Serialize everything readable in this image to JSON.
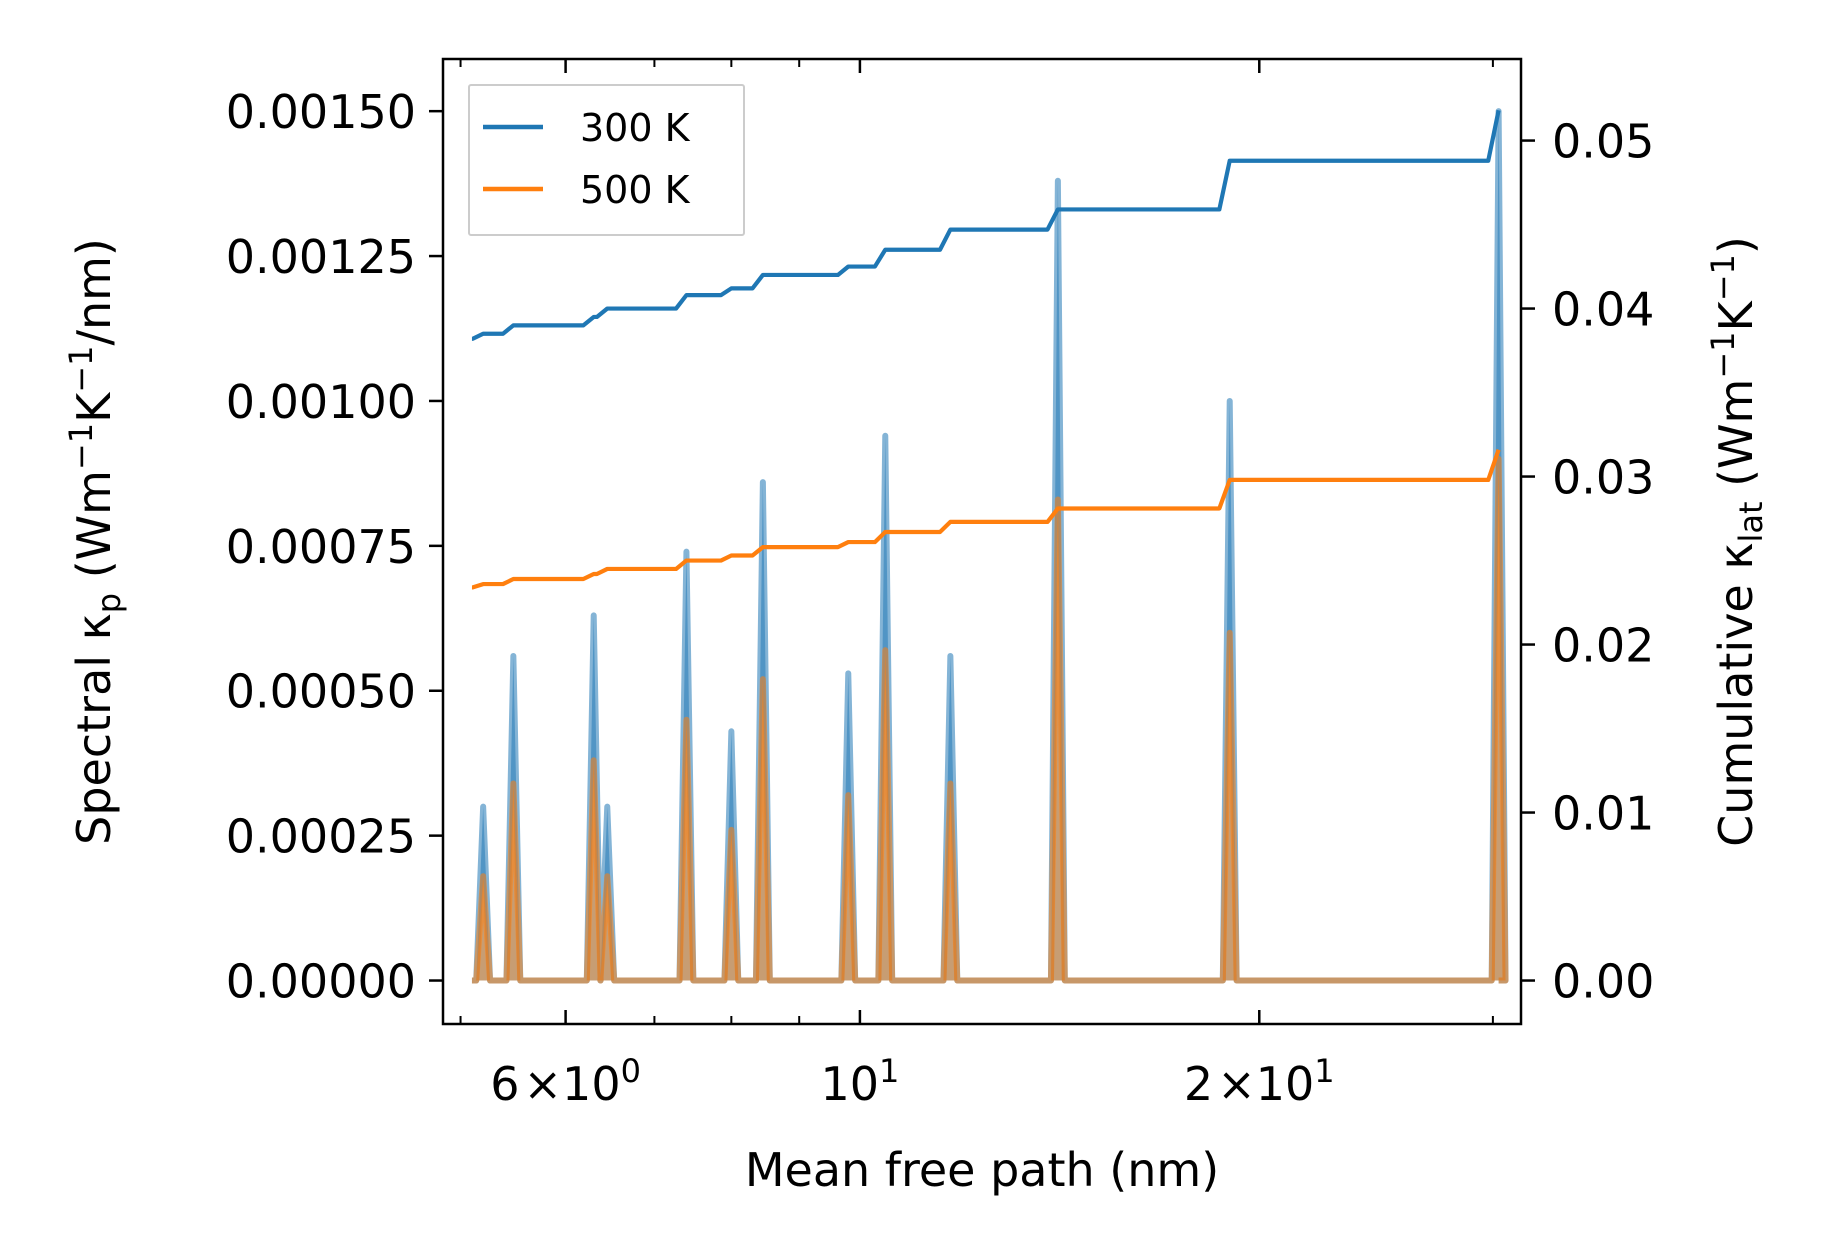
{
  "chart_data": {
    "type": "line",
    "xscale": "log",
    "xlim": [
      4.85,
      31.5
    ],
    "xticks_major": [
      {
        "value": 6,
        "base": "6",
        "exp": "0",
        "mult": true
      },
      {
        "value": 10,
        "base": "10",
        "exp": "1",
        "mult": false
      },
      {
        "value": 20,
        "base": "2",
        "exp": "1",
        "mult": true
      }
    ],
    "xticks_minor": [
      5,
      7,
      8,
      9,
      30
    ],
    "xlabel": "Mean free path (nm)",
    "ylabel_left": {
      "prefix": "Spectral κ",
      "sub": "p",
      "unit": " (Wm",
      "sup1": "−1",
      "mid": "K",
      "sup2": "−1",
      "end": "/nm)"
    },
    "ylabel_right": {
      "prefix": "Cumulative κ",
      "sub": "lat",
      "unit": " (Wm",
      "sup1": "−1",
      "mid": "K",
      "sup2": "−1",
      "end": ")"
    },
    "ylim_left": [
      -7.5e-05,
      0.00159
    ],
    "ylim_right": [
      -0.0025875,
      0.054855
    ],
    "yticks_left": [
      "0.00000",
      "0.00025",
      "0.00050",
      "0.00075",
      "0.00100",
      "0.00125",
      "0.00150"
    ],
    "yticks_left_values": [
      0,
      0.00025,
      0.0005,
      0.00075,
      0.001,
      0.00125,
      0.0015
    ],
    "yticks_right": [
      "0.00",
      "0.01",
      "0.02",
      "0.03",
      "0.04",
      "0.05"
    ],
    "yticks_right_values": [
      0,
      0.01,
      0.02,
      0.03,
      0.04,
      0.05
    ],
    "legend": {
      "position": "upper-left",
      "entries": [
        "300 K",
        "500 K"
      ]
    },
    "colors": {
      "300K": "#1f77b4",
      "500K": "#ff7f0e"
    },
    "series": [
      {
        "name": "300 K",
        "color": "#1f77b4",
        "spectral_peaks": [
          {
            "x": 5.2,
            "y": 0.0003
          },
          {
            "x": 5.48,
            "y": 0.00056
          },
          {
            "x": 6.3,
            "y": 0.00063
          },
          {
            "x": 6.45,
            "y": 0.0003
          },
          {
            "x": 7.4,
            "y": 0.00074
          },
          {
            "x": 8.0,
            "y": 0.00043
          },
          {
            "x": 8.45,
            "y": 0.00086
          },
          {
            "x": 9.8,
            "y": 0.00053
          },
          {
            "x": 10.45,
            "y": 0.00094
          },
          {
            "x": 11.7,
            "y": 0.00056
          },
          {
            "x": 14.1,
            "y": 0.00138
          },
          {
            "x": 19.0,
            "y": 0.001
          },
          {
            "x": 30.3,
            "y": 0.0015
          }
        ],
        "cumulative_steps": [
          {
            "x": 5.1,
            "y": 0.0382
          },
          {
            "x": 5.2,
            "y": 0.0385
          },
          {
            "x": 5.48,
            "y": 0.039
          },
          {
            "x": 6.3,
            "y": 0.0395
          },
          {
            "x": 6.45,
            "y": 0.04
          },
          {
            "x": 7.4,
            "y": 0.0408
          },
          {
            "x": 8.0,
            "y": 0.0412
          },
          {
            "x": 8.45,
            "y": 0.042
          },
          {
            "x": 9.8,
            "y": 0.0425
          },
          {
            "x": 10.45,
            "y": 0.0435
          },
          {
            "x": 11.7,
            "y": 0.0447
          },
          {
            "x": 14.1,
            "y": 0.0459
          },
          {
            "x": 19.0,
            "y": 0.0488
          },
          {
            "x": 30.3,
            "y": 0.0518
          }
        ]
      },
      {
        "name": "500 K",
        "color": "#ff7f0e",
        "spectral_peaks": [
          {
            "x": 5.2,
            "y": 0.00018
          },
          {
            "x": 5.48,
            "y": 0.00034
          },
          {
            "x": 6.3,
            "y": 0.00038
          },
          {
            "x": 6.45,
            "y": 0.00018
          },
          {
            "x": 7.4,
            "y": 0.00045
          },
          {
            "x": 8.0,
            "y": 0.00026
          },
          {
            "x": 8.45,
            "y": 0.00052
          },
          {
            "x": 9.8,
            "y": 0.00032
          },
          {
            "x": 10.45,
            "y": 0.00057
          },
          {
            "x": 11.7,
            "y": 0.00034
          },
          {
            "x": 14.1,
            "y": 0.00083
          },
          {
            "x": 19.0,
            "y": 0.0006
          },
          {
            "x": 30.3,
            "y": 0.0009
          }
        ],
        "cumulative_steps": [
          {
            "x": 5.1,
            "y": 0.0234
          },
          {
            "x": 5.2,
            "y": 0.0236
          },
          {
            "x": 5.48,
            "y": 0.0239
          },
          {
            "x": 6.3,
            "y": 0.0242
          },
          {
            "x": 6.45,
            "y": 0.0245
          },
          {
            "x": 7.4,
            "y": 0.025
          },
          {
            "x": 8.0,
            "y": 0.0253
          },
          {
            "x": 8.45,
            "y": 0.0258
          },
          {
            "x": 9.8,
            "y": 0.0261
          },
          {
            "x": 10.45,
            "y": 0.0267
          },
          {
            "x": 11.7,
            "y": 0.0273
          },
          {
            "x": 14.1,
            "y": 0.0281
          },
          {
            "x": 19.0,
            "y": 0.0298
          },
          {
            "x": 30.3,
            "y": 0.0316
          }
        ]
      }
    ]
  }
}
